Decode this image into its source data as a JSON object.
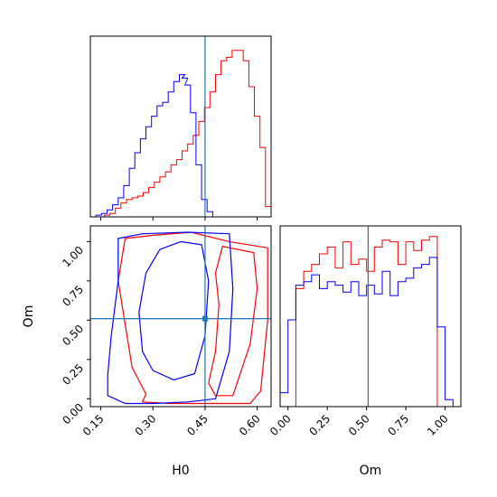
{
  "colors": {
    "series_a": "#ff0000",
    "series_b": "#0000ff",
    "truth": "#1f77b4"
  },
  "chart_data": [
    {
      "type": "histogram",
      "panel": "H0 marginal",
      "xlim": [
        0.12,
        0.64
      ],
      "truth": 0.45,
      "series": [
        {
          "color": "#ff0000",
          "x": [
            0.152,
            0.168,
            0.184,
            0.2,
            0.216,
            0.232,
            0.248,
            0.264,
            0.28,
            0.296,
            0.312,
            0.328,
            0.344,
            0.36,
            0.376,
            0.392,
            0.408,
            0.424,
            0.44,
            0.456,
            0.472,
            0.488,
            0.504,
            0.52,
            0.536,
            0.552,
            0.568,
            0.584,
            0.6,
            0.616,
            0.632
          ],
          "values": [
            0,
            1,
            2,
            5,
            8,
            10,
            11,
            12,
            14,
            17,
            20,
            23,
            26,
            30,
            33,
            38,
            42,
            47,
            55,
            63,
            72,
            82,
            90,
            92,
            96,
            96,
            90,
            75,
            58,
            40,
            6
          ]
        },
        {
          "color": "#0000ff",
          "x": [
            0.128,
            0.144,
            0.16,
            0.176,
            0.192,
            0.208,
            0.224,
            0.24,
            0.256,
            0.272,
            0.288,
            0.304,
            0.32,
            0.336,
            0.352,
            0.368,
            0.384,
            0.392,
            0.4,
            0.416,
            0.432,
            0.448,
            0.464,
            0.48
          ],
          "values": [
            0,
            1,
            2,
            4,
            7,
            11,
            18,
            28,
            37,
            45,
            52,
            58,
            64,
            66,
            72,
            78,
            82,
            80,
            76,
            60,
            30,
            10,
            3,
            0
          ]
        }
      ]
    },
    {
      "type": "contour",
      "panel": "H0 vs Om joint",
      "xlabel": "H0",
      "ylabel": "Om",
      "xlim": [
        0.12,
        0.64
      ],
      "ylim": [
        -0.05,
        1.1
      ],
      "xticks": [
        "0.15",
        "0.30",
        "0.45",
        "0.60"
      ],
      "yticks": [
        "0.00",
        "0.25",
        "0.50",
        "0.75",
        "1.00"
      ],
      "truth": [
        0.45,
        0.51
      ],
      "series": [
        {
          "color": "#ff0000",
          "outer": [
            [
              0.27,
              -0.02
            ],
            [
              0.35,
              -0.03
            ],
            [
              0.45,
              -0.03
            ],
            [
              0.58,
              -0.03
            ],
            [
              0.61,
              0.05
            ],
            [
              0.63,
              0.5
            ],
            [
              0.63,
              0.96
            ],
            [
              0.52,
              1.0
            ],
            [
              0.41,
              1.06
            ],
            [
              0.3,
              1.04
            ],
            [
              0.22,
              1.02
            ],
            [
              0.2,
              0.75
            ],
            [
              0.24,
              0.2
            ],
            [
              0.28,
              0.03
            ]
          ],
          "inner": [
            [
              0.48,
              0.02
            ],
            [
              0.53,
              0.02
            ],
            [
              0.58,
              0.35
            ],
            [
              0.6,
              0.7
            ],
            [
              0.59,
              0.93
            ],
            [
              0.5,
              0.97
            ],
            [
              0.48,
              0.8
            ],
            [
              0.49,
              0.6
            ],
            [
              0.48,
              0.3
            ],
            [
              0.46,
              0.1
            ]
          ]
        },
        {
          "color": "#0000ff",
          "outer": [
            [
              0.17,
              0.02
            ],
            [
              0.22,
              -0.03
            ],
            [
              0.3,
              -0.03
            ],
            [
              0.4,
              -0.02
            ],
            [
              0.48,
              0.0
            ],
            [
              0.52,
              0.3
            ],
            [
              0.53,
              0.7
            ],
            [
              0.52,
              1.05
            ],
            [
              0.4,
              1.06
            ],
            [
              0.27,
              1.05
            ],
            [
              0.2,
              1.02
            ],
            [
              0.2,
              0.75
            ],
            [
              0.18,
              0.4
            ],
            [
              0.17,
              0.15
            ]
          ],
          "inner": [
            [
              0.3,
              0.18
            ],
            [
              0.36,
              0.12
            ],
            [
              0.42,
              0.16
            ],
            [
              0.45,
              0.4
            ],
            [
              0.46,
              0.75
            ],
            [
              0.44,
              0.98
            ],
            [
              0.38,
              1.0
            ],
            [
              0.32,
              0.95
            ],
            [
              0.28,
              0.8
            ],
            [
              0.26,
              0.55
            ],
            [
              0.27,
              0.3
            ]
          ]
        }
      ]
    },
    {
      "type": "histogram",
      "panel": "Om marginal",
      "xlabel": "Om",
      "xlim": [
        -0.05,
        1.1
      ],
      "xticks": [
        "0.00",
        "0.25",
        "0.50",
        "0.75",
        "1.00"
      ],
      "truth": 0.51,
      "series": [
        {
          "color": "#ff0000",
          "x": [
            0.025,
            0.075,
            0.125,
            0.175,
            0.225,
            0.275,
            0.325,
            0.375,
            0.425,
            0.475,
            0.525,
            0.575,
            0.625,
            0.675,
            0.725,
            0.775,
            0.825,
            0.875,
            0.925,
            0.975
          ],
          "values": [
            0,
            68,
            78,
            82,
            88,
            92,
            80,
            95,
            82,
            85,
            78,
            92,
            96,
            95,
            82,
            95,
            90,
            96,
            98,
            0
          ]
        },
        {
          "color": "#0000ff",
          "x": [
            -0.025,
            0.025,
            0.075,
            0.125,
            0.175,
            0.225,
            0.275,
            0.325,
            0.375,
            0.425,
            0.475,
            0.525,
            0.575,
            0.625,
            0.675,
            0.725,
            0.775,
            0.825,
            0.875,
            0.925,
            0.975,
            1.025,
            1.075
          ],
          "values": [
            8,
            50,
            70,
            72,
            76,
            68,
            72,
            70,
            66,
            72,
            64,
            70,
            65,
            78,
            64,
            72,
            74,
            80,
            82,
            86,
            46,
            4,
            0
          ]
        }
      ]
    }
  ]
}
